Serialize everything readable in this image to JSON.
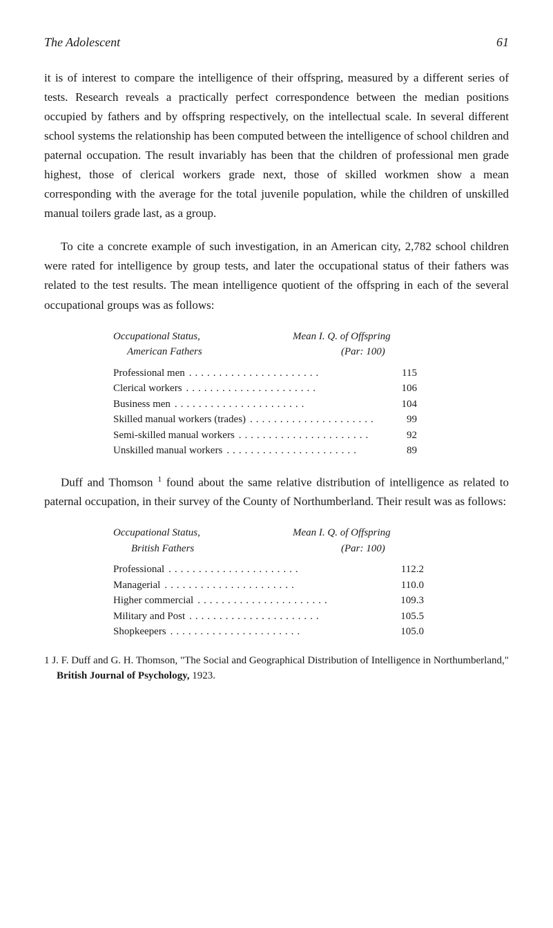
{
  "header": {
    "title": "The Adolescent",
    "page": "61"
  },
  "paragraphs": {
    "p1": "it is of interest to compare the intelligence of their offspring, measured by a different series of tests. Research reveals a practically perfect correspondence between the median positions occupied by fathers and by offspring respectively, on the intellectual scale. In several different school systems the relationship has been computed between the intelligence of school children and paternal occupation. The result invariably has been that the children of professional men grade highest, those of clerical workers grade next, those of skilled workmen show a mean corresponding with the average for the total juvenile population, while the children of unskilled manual toilers grade last, as a group.",
    "p2": "To cite a concrete example of such investigation, in an American city, 2,782 school children were rated for intelligence by group tests, and later the occupational status of their fathers was related to the test results. The mean intelligence quotient of the offspring in each of the several occupational groups was as follows:",
    "p3_pre": "Duff and Thomson ",
    "p3_sup": "1",
    "p3_post": " found about the same relative distribution of intelligence as related to paternal occupation, in their survey of the County of Northumberland. Their result was as follows:"
  },
  "table1": {
    "header_left_line1": "Occupational Status,",
    "header_left_line2": "American Fathers",
    "header_right_line1": "Mean I. Q. of Offspring",
    "header_right_line2": "(Par: 100)",
    "rows": [
      {
        "label": "Professional men",
        "value": "115"
      },
      {
        "label": "Clerical workers",
        "value": "106"
      },
      {
        "label": "Business men",
        "value": "104"
      },
      {
        "label": "Skilled manual workers (trades)",
        "value": "99"
      },
      {
        "label": "Semi-skilled manual workers",
        "value": "92"
      },
      {
        "label": "Unskilled manual workers",
        "value": "89"
      }
    ]
  },
  "table2": {
    "header_left_line1": "Occupational Status,",
    "header_left_line2": "British Fathers",
    "header_right_line1": "Mean I. Q. of Offspring",
    "header_right_line2": "(Par: 100)",
    "rows": [
      {
        "label": "Professional",
        "value": "112.2"
      },
      {
        "label": "Managerial",
        "value": "110.0"
      },
      {
        "label": "Higher commercial",
        "value": "109.3"
      },
      {
        "label": "Military and Post",
        "value": "105.5"
      },
      {
        "label": "Shopkeepers",
        "value": "105.0"
      }
    ]
  },
  "footnote": {
    "marker": "1",
    "text_pre": " J. F. Duff and G. H. Thomson, \"The Social and Geographical Distribution of Intelligence in Northumberland,\" ",
    "bold1": "British Journal of Psychology,",
    "text_post": " 1923."
  },
  "styling": {
    "background_color": "#ffffff",
    "text_color": "#1a1a1a",
    "body_font_size": 17,
    "table_font_size": 15,
    "header_font_size": 18,
    "footnote_font_size": 15
  }
}
